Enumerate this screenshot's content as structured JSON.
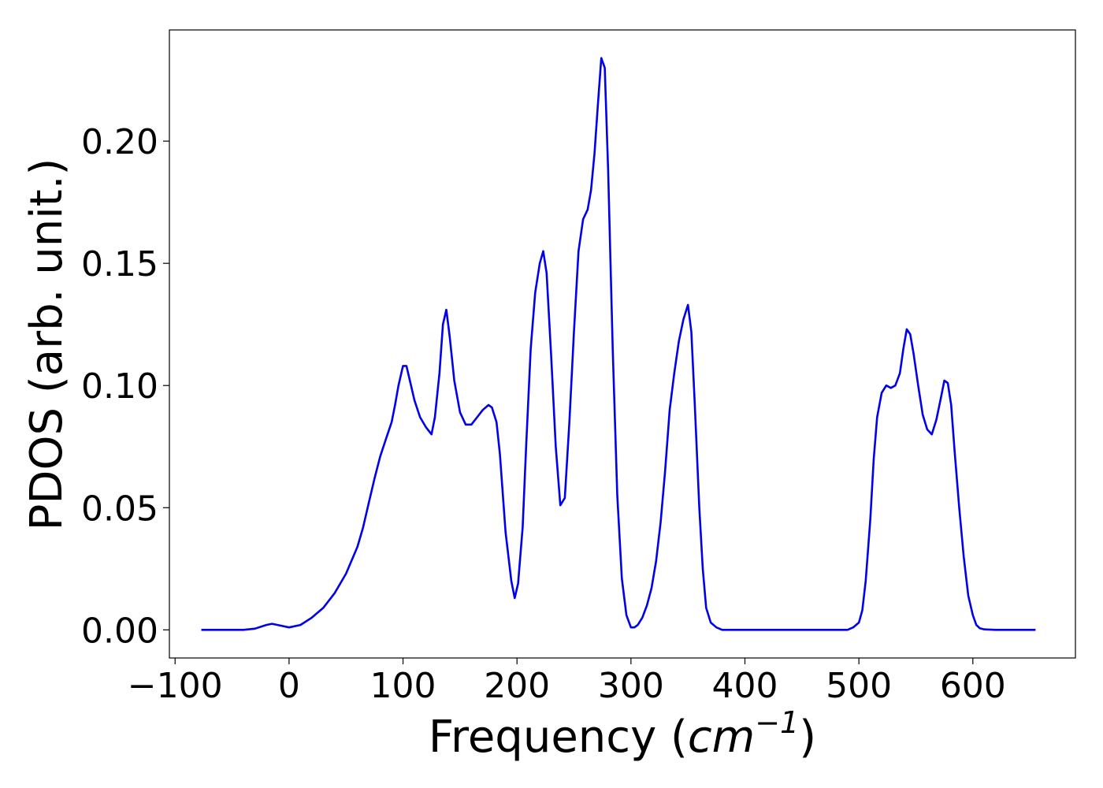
{
  "chart_data": {
    "type": "line",
    "title": "",
    "xlabel_main": "Frequency (",
    "xlabel_unit": "cm",
    "xlabel_exp": "−1",
    "xlabel_close": ")",
    "ylabel": "PDOS (arb. unit.)",
    "xlim": [
      -105,
      690
    ],
    "ylim": [
      -0.0115,
      0.2455
    ],
    "x_ticks": [
      -100,
      0,
      100,
      200,
      300,
      400,
      500,
      600
    ],
    "x_tick_labels": [
      "−100",
      "0",
      "100",
      "200",
      "300",
      "400",
      "500",
      "600"
    ],
    "y_ticks": [
      0.0,
      0.05,
      0.1,
      0.15,
      0.2
    ],
    "y_tick_labels": [
      "0.00",
      "0.05",
      "0.10",
      "0.15",
      "0.20"
    ],
    "grid": false,
    "line_color": "#0000ee",
    "series": [
      {
        "x": [
          -77,
          -40,
          -30,
          -20,
          -15,
          -10,
          0,
          10,
          20,
          30,
          40,
          50,
          60,
          65,
          70,
          75,
          80,
          85,
          90,
          93,
          96,
          100,
          103,
          107,
          110,
          115,
          120,
          125,
          128,
          132,
          135,
          138,
          141,
          145,
          150,
          155,
          160,
          165,
          170,
          175,
          178,
          182,
          185,
          190,
          195,
          198,
          201,
          205,
          208,
          212,
          216,
          220,
          223,
          226,
          230,
          234,
          238,
          242,
          246,
          250,
          254,
          258,
          262,
          265,
          268,
          271,
          274,
          277,
          280,
          284,
          288,
          292,
          296,
          300,
          303,
          306,
          310,
          314,
          318,
          322,
          326,
          330,
          334,
          338,
          342,
          346,
          350,
          353,
          356,
          360,
          363,
          366,
          370,
          375,
          380,
          400,
          450,
          490,
          495,
          500,
          503,
          506,
          510,
          513,
          516,
          520,
          524,
          528,
          532,
          536,
          539,
          542,
          545,
          548,
          552,
          556,
          560,
          564,
          568,
          572,
          575,
          578,
          581,
          584,
          588,
          592,
          596,
          600,
          603,
          606,
          610,
          620,
          655
        ],
        "y": [
          0.0,
          0.0,
          0.0005,
          0.002,
          0.0025,
          0.002,
          0.001,
          0.002,
          0.005,
          0.009,
          0.015,
          0.023,
          0.034,
          0.042,
          0.052,
          0.062,
          0.071,
          0.078,
          0.085,
          0.092,
          0.1,
          0.108,
          0.108,
          0.1,
          0.094,
          0.087,
          0.083,
          0.08,
          0.087,
          0.105,
          0.125,
          0.131,
          0.12,
          0.102,
          0.089,
          0.084,
          0.084,
          0.087,
          0.09,
          0.092,
          0.091,
          0.085,
          0.072,
          0.04,
          0.02,
          0.013,
          0.019,
          0.042,
          0.075,
          0.115,
          0.138,
          0.15,
          0.155,
          0.146,
          0.112,
          0.075,
          0.051,
          0.054,
          0.085,
          0.122,
          0.155,
          0.168,
          0.172,
          0.18,
          0.195,
          0.215,
          0.234,
          0.23,
          0.188,
          0.115,
          0.055,
          0.021,
          0.006,
          0.001,
          0.001,
          0.002,
          0.005,
          0.01,
          0.017,
          0.028,
          0.044,
          0.065,
          0.09,
          0.105,
          0.118,
          0.127,
          0.133,
          0.122,
          0.092,
          0.05,
          0.025,
          0.009,
          0.003,
          0.001,
          0.0,
          0.0,
          0.0,
          0.0,
          0.001,
          0.003,
          0.008,
          0.02,
          0.045,
          0.07,
          0.087,
          0.097,
          0.1,
          0.099,
          0.1,
          0.105,
          0.115,
          0.123,
          0.121,
          0.113,
          0.1,
          0.088,
          0.082,
          0.08,
          0.086,
          0.095,
          0.102,
          0.101,
          0.092,
          0.073,
          0.05,
          0.03,
          0.014,
          0.006,
          0.002,
          0.0007,
          0.0002,
          0.0,
          0.0
        ]
      }
    ]
  }
}
